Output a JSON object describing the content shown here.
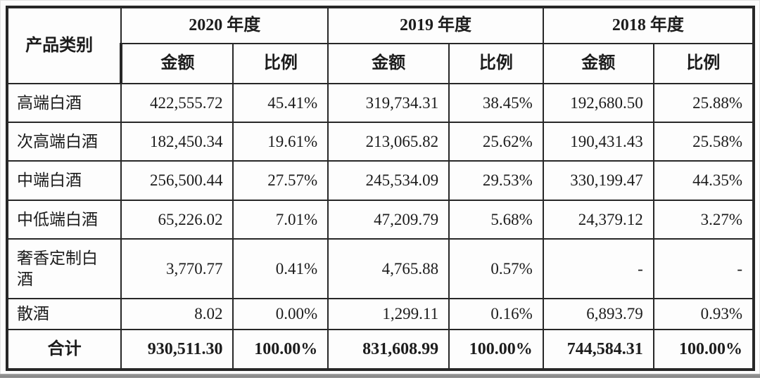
{
  "table": {
    "corner_header": "产品类别",
    "year_groups": [
      {
        "label": "2020 年度",
        "sub_headers": [
          "金额",
          "比例"
        ]
      },
      {
        "label": "2019 年度",
        "sub_headers": [
          "金额",
          "比例"
        ]
      },
      {
        "label": "2018 年度",
        "sub_headers": [
          "金额",
          "比例"
        ]
      }
    ],
    "rows": [
      {
        "category": "高端白酒",
        "values": [
          "422,555.72",
          "45.41%",
          "319,734.31",
          "38.45%",
          "192,680.50",
          "25.88%"
        ]
      },
      {
        "category": "次高端白酒",
        "values": [
          "182,450.34",
          "19.61%",
          "213,065.82",
          "25.62%",
          "190,431.43",
          "25.58%"
        ]
      },
      {
        "category": "中端白酒",
        "values": [
          "256,500.44",
          "27.57%",
          "245,534.09",
          "29.53%",
          "330,199.47",
          "44.35%"
        ]
      },
      {
        "category": "中低端白酒",
        "values": [
          "65,226.02",
          "7.01%",
          "47,209.79",
          "5.68%",
          "24,379.12",
          "3.27%"
        ]
      },
      {
        "category": "奢香定制白酒",
        "values": [
          "3,770.77",
          "0.41%",
          "4,765.88",
          "0.57%",
          "-",
          "-"
        ]
      },
      {
        "category": "散酒",
        "values": [
          "8.02",
          "0.00%",
          "1,299.11",
          "0.16%",
          "6,893.79",
          "0.93%"
        ]
      }
    ],
    "total_row": {
      "category": "合计",
      "values": [
        "930,511.30",
        "100.00%",
        "831,608.99",
        "100.00%",
        "744,584.31",
        "100.00%"
      ]
    }
  },
  "colors": {
    "text": "#1c1c1c",
    "border": "#272727",
    "outer_border": "#131313",
    "background": "#fdfdfd",
    "bottom_band": "#848484"
  }
}
